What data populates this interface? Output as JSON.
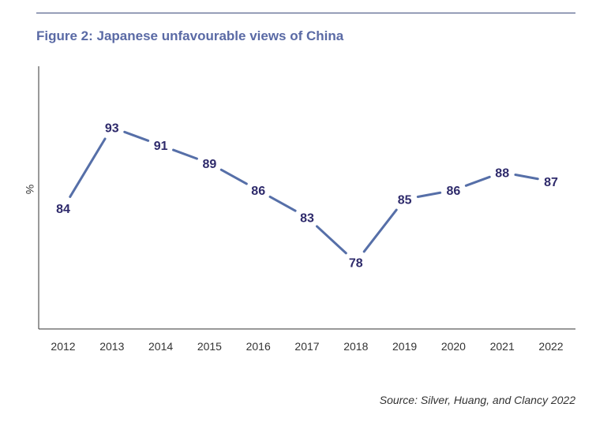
{
  "title": "Figure 2: Japanese unfavourable views of China",
  "source": "Source: Silver, Huang, and Clancy 2022",
  "colors": {
    "line": "#566fa8",
    "label": "#2e2a6b",
    "title": "#5a6aa5",
    "axis": "#333333"
  },
  "chart_data": {
    "type": "line",
    "title": "Figure 2: Japanese unfavourable views of China",
    "xlabel": "",
    "ylabel": "%",
    "x": [
      "2012",
      "2013",
      "2014",
      "2015",
      "2016",
      "2017",
      "2018",
      "2019",
      "2020",
      "2021",
      "2022"
    ],
    "series": [
      {
        "values": [
          84,
          93,
          91,
          89,
          86,
          83,
          78,
          85,
          86,
          88,
          87
        ]
      }
    ],
    "ylim": [
      65,
      100
    ],
    "grid": false,
    "data_labels": true
  }
}
